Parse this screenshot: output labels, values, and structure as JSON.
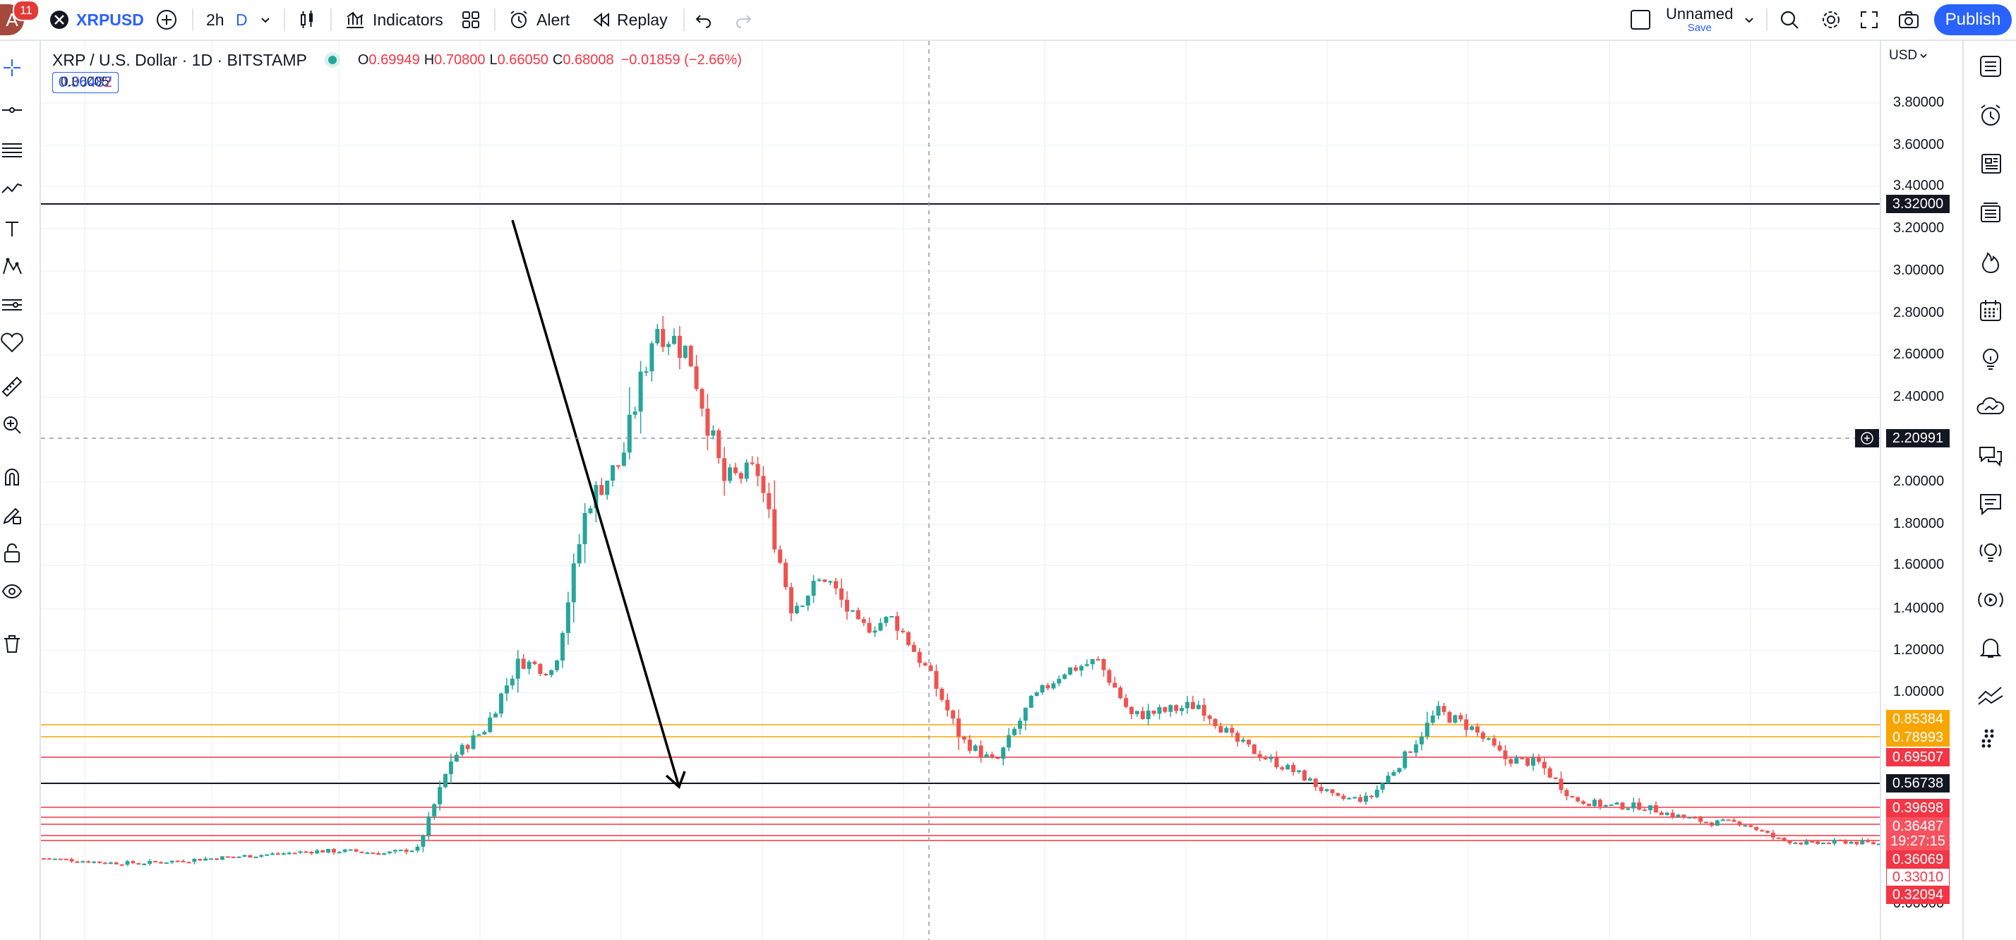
{
  "topbar": {
    "avatar_letter": "A",
    "notif_count": "11",
    "symbol": "XRPUSD",
    "interval_2h": "2h",
    "interval_d": "D",
    "indicators": "Indicators",
    "alert": "Alert",
    "replay": "Replay",
    "layout_name": "Unnamed",
    "layout_save": "Save",
    "publish": "Publish"
  },
  "legend": {
    "title": "XRP / U.S. Dollar · 1D · BITSTAMP",
    "o_label": "O",
    "o_value": "0.69949",
    "h_label": "H",
    "h_value": "0.70800",
    "l_label": "L",
    "l_value": "0.66050",
    "c_label": "C",
    "c_value": "0.68008",
    "change": "−0.01859 (−2.66%)",
    "bid": "0.36482",
    "spread": "0.00005",
    "ask": "0.36487"
  },
  "price_axis": {
    "currency": "USD",
    "ticks": [
      "3.80000",
      "3.60000",
      "3.40000",
      "3.20000",
      "3.00000",
      "2.80000",
      "2.60000",
      "2.40000",
      "2.00000",
      "1.80000",
      "1.60000",
      "1.40000",
      "1.20000",
      "1.00000",
      "0.00000"
    ],
    "crosshair_price": "2.20991",
    "labels": [
      {
        "text": "3.32000",
        "color": "#131722"
      },
      {
        "text": "0.85384",
        "color": "#f7a600"
      },
      {
        "text": "0.78993",
        "color": "#f7a600"
      },
      {
        "text": "0.69507",
        "color": "#f23645"
      },
      {
        "text": "0.56738",
        "color": "#131722"
      },
      {
        "text": "0.39698",
        "color": "#f23645"
      },
      {
        "text": "0.36487",
        "color": "#f7525f"
      },
      {
        "text": "19:27:15",
        "color": "#f7525f"
      },
      {
        "text": "0.36069",
        "color": "#f23645"
      },
      {
        "text": "0.33010",
        "color": "#ffffff"
      },
      {
        "text": "0.32094",
        "color": "#f23645"
      }
    ]
  },
  "colors": {
    "up": "#26a69a",
    "down": "#ef5350",
    "accent": "#2962ff",
    "orange_line": "#f7a600",
    "red_line": "#f23645"
  },
  "icons": {
    "left": [
      "crosshair-icon",
      "trend-line-icon",
      "fib-retracement-icon",
      "pattern-icon",
      "text-icon",
      "prediction-icon",
      "measure-tools-icon",
      "favorites-icon",
      "ruler-icon",
      "zoom-in-icon",
      "magnet-icon",
      "lock-drawing-icon",
      "lock-icon",
      "eye-icon",
      "trash-icon"
    ],
    "right": [
      "watchlist-icon",
      "alerts-clock-icon",
      "news-icon",
      "screener-icon",
      "hotlists-icon",
      "calendar-icon",
      "ideas-icon",
      "community-icon",
      "chats-icon",
      "messages-icon",
      "idea-streams-icon",
      "live-stream-icon",
      "notifications-icon",
      "trading-panel-icon",
      "dom-icon"
    ]
  },
  "chart_data": {
    "type": "candlestick",
    "symbol": "XRP / U.S. Dollar",
    "timeframe": "1D",
    "exchange": "BITSTAMP",
    "ylim": [
      0,
      3.9
    ],
    "horizontal_lines": [
      3.32,
      0.85384,
      0.78993,
      0.69507,
      0.56738,
      0.39698,
      0.36487,
      0.36069,
      0.3301,
      0.32094
    ],
    "trend_arrow": {
      "from_price": 3.24,
      "to_price": 0.55
    },
    "close_path": [
      0.3,
      0.29,
      0.28,
      0.28,
      0.29,
      0.3,
      0.31,
      0.32,
      0.33,
      0.33,
      0.32,
      0.34,
      0.72,
      0.85,
      1.15,
      1.1,
      1.9,
      2.1,
      2.75,
      2.6,
      2.0,
      2.05,
      1.4,
      1.55,
      1.3,
      1.35,
      1.1,
      0.8,
      0.7,
      0.95,
      1.1,
      1.15,
      0.9,
      0.92,
      0.95,
      0.8,
      0.72,
      0.65,
      0.55,
      0.55,
      0.72,
      0.92,
      0.85,
      0.72,
      0.7,
      0.55,
      0.52,
      0.52,
      0.48,
      0.45,
      0.45,
      0.38,
      0.36,
      0.37,
      0.36
    ]
  }
}
